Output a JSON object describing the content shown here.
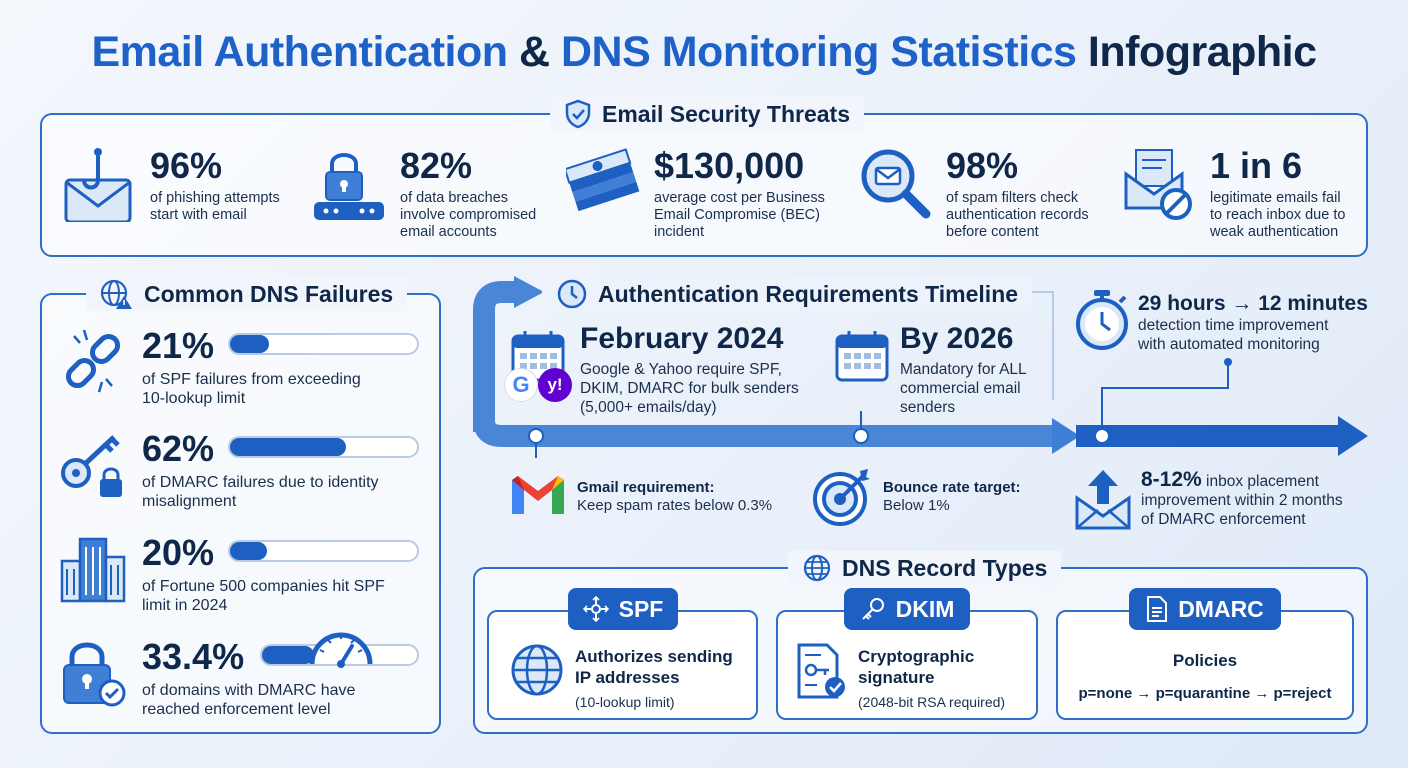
{
  "title": {
    "part1": "Email Authentication",
    "amp": "&",
    "part2": "DNS Monitoring Statistics",
    "part3": "Infographic"
  },
  "threats": {
    "heading": "Email Security Threats",
    "items": [
      {
        "value": "96%",
        "desc_l1": "of phishing attempts",
        "desc_l2": "start with email",
        "desc_l3": "",
        "icon": "email-hook-icon"
      },
      {
        "value": "82%",
        "desc_l1": "of data breaches",
        "desc_l2": "involve compromised",
        "desc_l3": "email accounts",
        "icon": "padlock-password-icon"
      },
      {
        "value": "$130,000",
        "desc_l1": "average cost per Business",
        "desc_l2": "Email Compromise (BEC)",
        "desc_l3": "incident",
        "icon": "money-stack-icon"
      },
      {
        "value": "98%",
        "desc_l1": "of spam filters check",
        "desc_l2": "authentication records",
        "desc_l3": "before content",
        "icon": "magnifier-email-icon"
      },
      {
        "value": "1 in 6",
        "desc_l1": "legitimate emails fail",
        "desc_l2": "to reach inbox due to",
        "desc_l3": "weak authentication",
        "icon": "blocked-email-icon"
      }
    ]
  },
  "dns_failures": {
    "heading": "Common DNS Failures",
    "items": [
      {
        "value": "21%",
        "desc_l1": "of SPF failures from exceeding",
        "desc_l2": "10-lookup limit",
        "fill": 0.21,
        "icon": "broken-link-icon"
      },
      {
        "value": "62%",
        "desc_l1": "of DMARC failures due to identity",
        "desc_l2": "misalignment",
        "fill": 0.62,
        "icon": "key-lock-icon"
      },
      {
        "value": "20%",
        "desc_l1": "of Fortune 500 companies hit SPF",
        "desc_l2": "limit in 2024",
        "fill": 0.2,
        "icon": "building-icon"
      },
      {
        "value": "33.4%",
        "desc_l1": "of domains with DMARC have",
        "desc_l2": "reached enforcement level",
        "fill": 0.334,
        "icon": "lock-check-icon"
      }
    ]
  },
  "timeline": {
    "heading": "Authentication Requirements Timeline",
    "milestone1": {
      "date": "February 2024",
      "l1": "Google & Yahoo require SPF,",
      "l2": "DKIM, DMARC for bulk senders",
      "l3": "(5,000+ emails/day)"
    },
    "milestone2": {
      "date": "By 2026",
      "l1": "Mandatory for ALL",
      "l2": "commercial email",
      "l3": "senders"
    },
    "gmail": {
      "title": "Gmail requirement:",
      "text": "Keep spam rates below 0.3%"
    },
    "bounce": {
      "title": "Bounce rate target:",
      "text": "Below 1%"
    },
    "detection": {
      "title": "29 hours → 12 minutes",
      "l1": "detection time improvement",
      "l2": "with automated monitoring"
    },
    "inbox": {
      "value": "8-12%",
      "l1": "inbox placement",
      "l2": "improvement within 2 months",
      "l3": "of DMARC enforcement"
    }
  },
  "records": {
    "heading": "DNS Record Types",
    "spf": {
      "tag": "SPF",
      "title_l1": "Authorizes sending",
      "title_l2": "IP addresses",
      "sub": "(10-lookup limit)"
    },
    "dkim": {
      "tag": "DKIM",
      "title_l1": "Cryptographic",
      "title_l2": "signature",
      "sub": "(2048-bit RSA required)"
    },
    "dmarc": {
      "tag": "DMARC",
      "title": "Policies",
      "sub": "p=none → p=quarantine → p=reject"
    }
  },
  "colors": {
    "accent": "#1e5fc2",
    "dark": "#0f2748",
    "border": "#2f6fc7"
  }
}
